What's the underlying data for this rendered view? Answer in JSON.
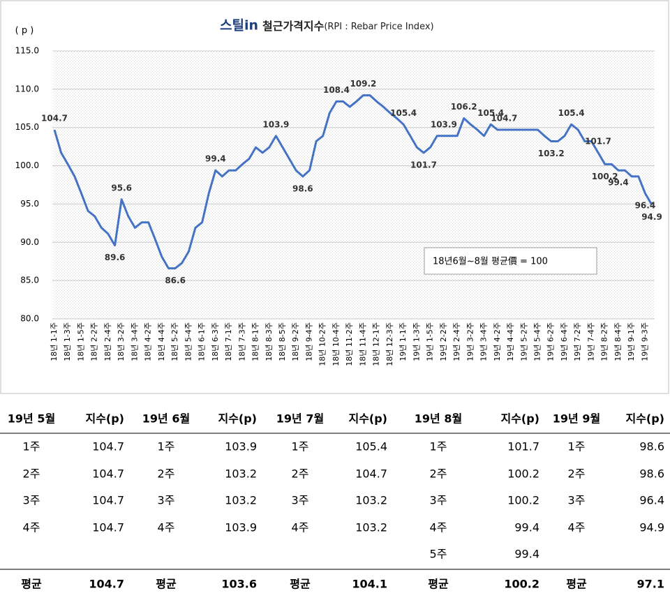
{
  "chart_data": {
    "type": "line",
    "title_logo": "스틸in",
    "title": "철근가격지수",
    "title_suffix": "(RPI : Rebar Price Index)",
    "y_unit": "( p )",
    "note": "18년6월~8월 평균價 = 100",
    "categories": [
      "18년 1-1주",
      null,
      "18년 1-3주",
      null,
      "18년 1-5주",
      null,
      "18년 2-2주",
      null,
      "18년 2-4주",
      null,
      "18년 3-2주",
      null,
      "18년 3-4주",
      null,
      "18년 4-2주",
      null,
      "18년 4-4주",
      null,
      "18년 5-2주",
      null,
      "18년 5-4주",
      null,
      "18년 6-1주",
      null,
      "18년 6-3주",
      null,
      "18년 7-1주",
      null,
      "18년 7-3주",
      null,
      "18년 8-1주",
      null,
      "18년 8-3주",
      null,
      "18년 8-5주",
      null,
      "18년 9-2주",
      null,
      "18년 9-4주",
      null,
      "18년 10-2주",
      null,
      "18년 10-4주",
      null,
      "18년 11-2주",
      null,
      "18년 11-4주",
      null,
      "18년 12-1주",
      null,
      "18년 12-3주",
      null,
      "19년 1-1주",
      null,
      "19년 1-3주",
      null,
      "19년 1-5주",
      null,
      "19년 2-2주",
      null,
      "19년 2-4주",
      null,
      "19년 3-2주",
      null,
      "19년 3-4주",
      null,
      "19년 4-2주",
      null,
      "19년 4-4주",
      null,
      "19년 5-2주",
      null,
      "19년 5-4주",
      null,
      "19년 6-2주",
      null,
      "19년 6-4주",
      null,
      "19년 7-2주",
      null,
      "19년 7-4주",
      null,
      "19년 8-2주",
      null,
      "19년 8-4주",
      null,
      "19년 9-1주",
      null,
      "19년 9-3주",
      null
    ],
    "series": [
      {
        "name": "철근가격지수",
        "color": "#4472c4",
        "values": [
          104.7,
          101.7,
          100.2,
          98.6,
          96.4,
          94.1,
          93.4,
          91.9,
          91.1,
          89.6,
          95.6,
          93.4,
          91.9,
          92.6,
          92.6,
          90.4,
          88.1,
          86.6,
          86.6,
          87.3,
          88.8,
          91.9,
          92.6,
          96.4,
          99.4,
          98.6,
          99.4,
          99.4,
          100.2,
          100.9,
          102.4,
          101.7,
          102.4,
          103.9,
          102.4,
          100.9,
          99.4,
          98.6,
          99.4,
          103.2,
          103.9,
          106.9,
          108.4,
          108.4,
          107.7,
          108.4,
          109.2,
          109.2,
          108.4,
          107.7,
          106.9,
          106.2,
          105.4,
          103.9,
          102.4,
          101.7,
          102.4,
          103.9,
          103.9,
          103.9,
          103.9,
          106.2,
          105.4,
          104.7,
          103.9,
          105.4,
          104.7,
          104.7,
          104.7,
          104.7,
          104.7,
          104.7,
          104.7,
          103.9,
          103.2,
          103.2,
          103.9,
          105.4,
          104.7,
          103.2,
          103.2,
          101.7,
          100.2,
          100.2,
          99.4,
          99.4,
          98.6,
          98.6,
          96.4,
          94.9
        ],
        "value_labels": [
          "104.7",
          null,
          null,
          null,
          null,
          null,
          null,
          null,
          null,
          "89.6",
          "95.6",
          null,
          null,
          null,
          null,
          null,
          null,
          null,
          "86.6",
          null,
          null,
          null,
          null,
          null,
          "99.4",
          null,
          null,
          null,
          null,
          null,
          null,
          null,
          null,
          "103.9",
          null,
          null,
          null,
          "98.6",
          null,
          null,
          null,
          null,
          "108.4",
          null,
          null,
          null,
          "109.2",
          null,
          null,
          null,
          null,
          null,
          "105.4",
          null,
          null,
          "101.7",
          null,
          null,
          "103.9",
          null,
          null,
          "106.2",
          null,
          null,
          null,
          "105.4",
          null,
          "104.7",
          null,
          null,
          null,
          null,
          null,
          null,
          "103.2",
          null,
          null,
          "105.4",
          null,
          null,
          null,
          "101.7",
          "100.2",
          null,
          "99.4",
          null,
          null,
          null,
          "96.4",
          "94.9"
        ]
      }
    ],
    "ylim": [
      80,
      115
    ],
    "yticks": [
      {
        "value": 80,
        "label": "80.0"
      },
      {
        "value": 85,
        "label": "85.0"
      },
      {
        "value": 90,
        "label": "90.0"
      },
      {
        "value": 95,
        "label": "95.0"
      },
      {
        "value": 100,
        "label": "100.0"
      },
      {
        "value": 105,
        "label": "105.0"
      },
      {
        "value": 110,
        "label": "110.0"
      },
      {
        "value": 115,
        "label": "115.0"
      }
    ],
    "grid": true
  },
  "table": {
    "columns": [
      [
        "19년 5월",
        "지수(p)"
      ],
      [
        "19년 6월",
        "지수(p)"
      ],
      [
        "19년 7월",
        "지수(p)"
      ],
      [
        "19년 8월",
        "지수(p)"
      ],
      [
        "19년 9월",
        "지수(p)"
      ]
    ],
    "rows": [
      [
        [
          "1주",
          "104.7"
        ],
        [
          "1주",
          "103.9"
        ],
        [
          "1주",
          "105.4"
        ],
        [
          "1주",
          "101.7"
        ],
        [
          "1주",
          "98.6"
        ]
      ],
      [
        [
          "2주",
          "104.7"
        ],
        [
          "2주",
          "103.2"
        ],
        [
          "2주",
          "104.7"
        ],
        [
          "2주",
          "100.2"
        ],
        [
          "2주",
          "98.6"
        ]
      ],
      [
        [
          "3주",
          "104.7"
        ],
        [
          "3주",
          "103.2"
        ],
        [
          "3주",
          "103.2"
        ],
        [
          "3주",
          "100.2"
        ],
        [
          "3주",
          "96.4"
        ]
      ],
      [
        [
          "4주",
          "104.7"
        ],
        [
          "4주",
          "103.9"
        ],
        [
          "4주",
          "103.2"
        ],
        [
          "4주",
          "99.4"
        ],
        [
          "4주",
          "94.9"
        ]
      ],
      [
        null,
        null,
        null,
        [
          "5주",
          "99.4"
        ],
        null
      ]
    ],
    "average": [
      [
        "평균",
        "104.7"
      ],
      [
        "평균",
        "103.6"
      ],
      [
        "평균",
        "104.1"
      ],
      [
        "평균",
        "100.2"
      ],
      [
        "평균",
        "97.1"
      ]
    ]
  }
}
